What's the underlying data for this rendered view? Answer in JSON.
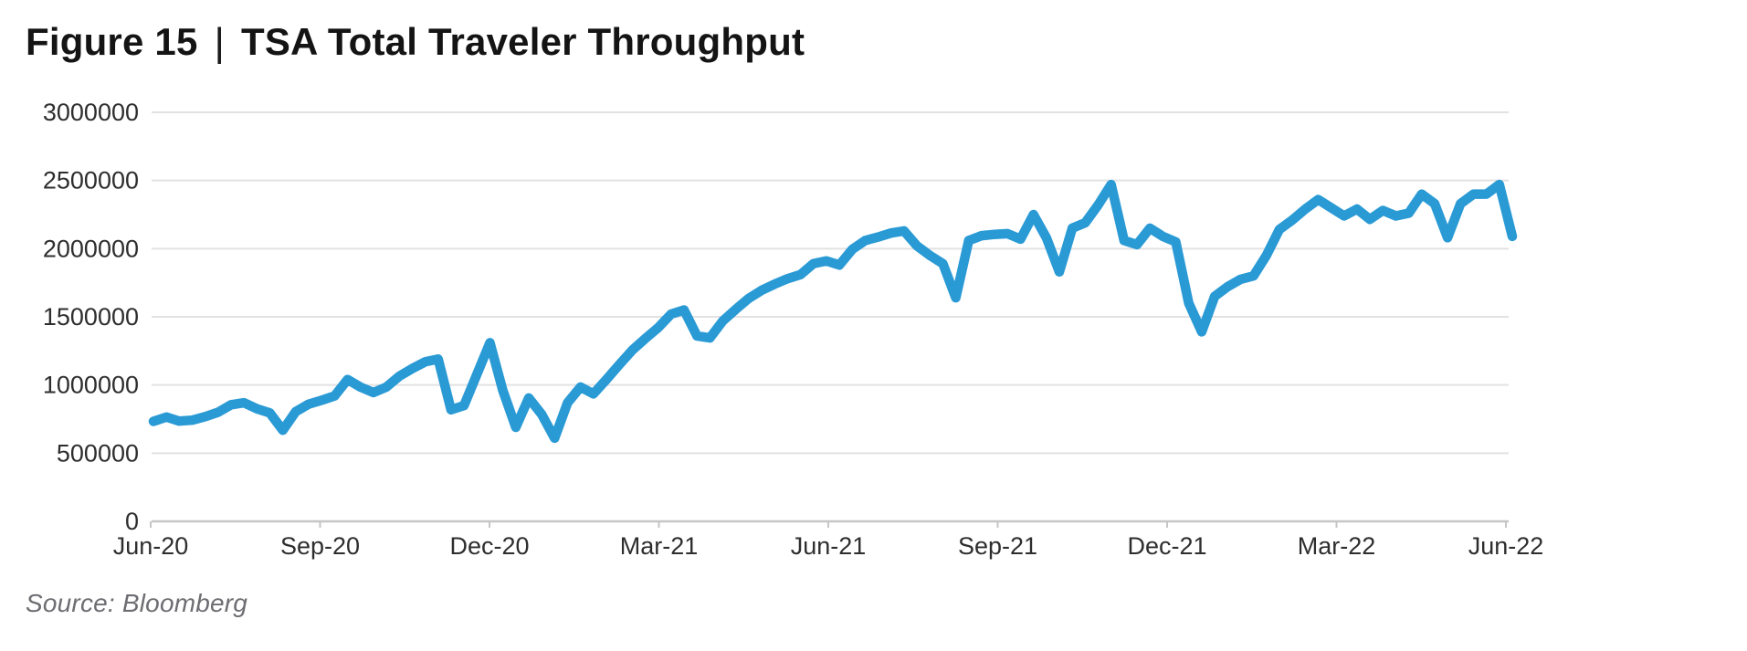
{
  "page": {
    "figure_label": "Figure 15",
    "separator": "|",
    "title": "TSA Total Traveler Throughput",
    "source": "Source: Bloomberg"
  },
  "style": {
    "line_color": "#2a9ad5",
    "grid_color": "#e2e2e2",
    "axis_color": "#c6c6c6",
    "tick_color": "#c6c6c6",
    "label_color": "#2e2e2e"
  },
  "chart_data": {
    "type": "line",
    "title": "TSA Total Traveler Throughput",
    "series": [
      {
        "name": "TSA total traveler throughput",
        "values": [
          733000,
          765000,
          735000,
          742000,
          768000,
          800000,
          855000,
          870000,
          825000,
          795000,
          668000,
          805000,
          860000,
          888000,
          920000,
          1040000,
          985000,
          945000,
          985000,
          1065000,
          1120000,
          1170000,
          1190000,
          818000,
          850000,
          1080000,
          1310000,
          960000,
          690000,
          905000,
          785000,
          610000,
          870000,
          985000,
          935000,
          1040000,
          1150000,
          1255000,
          1340000,
          1420000,
          1520000,
          1550000,
          1360000,
          1345000,
          1470000,
          1555000,
          1635000,
          1695000,
          1740000,
          1780000,
          1810000,
          1890000,
          1910000,
          1880000,
          1995000,
          2060000,
          2085000,
          2115000,
          2130000,
          2020000,
          1950000,
          1890000,
          1640000,
          2060000,
          2095000,
          2105000,
          2110000,
          2070000,
          2250000,
          2080000,
          1830000,
          2150000,
          2190000,
          2320000,
          2470000,
          2060000,
          2030000,
          2150000,
          2090000,
          2050000,
          1600000,
          1390000,
          1650000,
          1720000,
          1775000,
          1800000,
          1950000,
          2140000,
          2210000,
          2290000,
          2360000,
          2300000,
          2240000,
          2290000,
          2215000,
          2280000,
          2240000,
          2260000,
          2400000,
          2330000,
          2080000,
          2330000,
          2400000,
          2400000,
          2470000,
          2090000
        ]
      }
    ],
    "x_ticks": [
      "Jun-20",
      "Sep-20",
      "Dec-20",
      "Mar-21",
      "Jun-21",
      "Sep-21",
      "Dec-21",
      "Mar-22",
      "Jun-22"
    ],
    "x_sampling": "weekly points from Jun-20 through Jun-22",
    "y_ticks": [
      0,
      500000,
      1000000,
      1500000,
      2000000,
      2500000,
      3000000
    ],
    "ylim": [
      0,
      3000000
    ],
    "grid": true,
    "legend": false
  }
}
